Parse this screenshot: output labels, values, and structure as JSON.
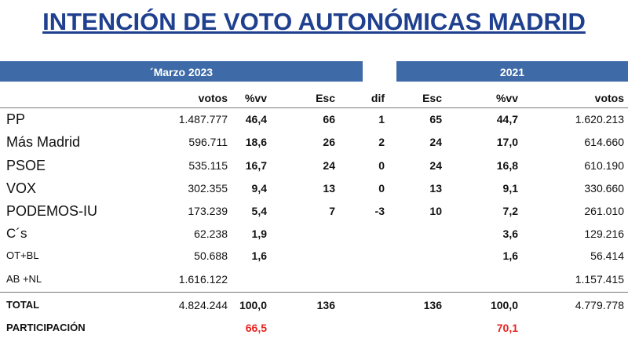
{
  "title": "INTENCIÓN DE VOTO AUTONÓMICAS MADRID",
  "header_groups": [
    "´Marzo 2023",
    "2021"
  ],
  "columns": [
    "votos",
    "%vv",
    "Esc",
    "dif",
    "Esc",
    "%vv",
    "votos"
  ],
  "rows": [
    [
      "PP",
      "1.487.777",
      "46,4",
      "66",
      "1",
      "65",
      "44,7",
      "1.620.213"
    ],
    [
      "Más Madrid",
      "596.711",
      "18,6",
      "26",
      "2",
      "24",
      "17,0",
      "614.660"
    ],
    [
      "PSOE",
      "535.115",
      "16,7",
      "24",
      "0",
      "24",
      "16,8",
      "610.190"
    ],
    [
      "VOX",
      "302.355",
      "9,4",
      "13",
      "0",
      "13",
      "9,1",
      "330.660"
    ],
    [
      "PODEMOS-IU",
      "173.239",
      "5,4",
      "7",
      "-3",
      "10",
      "7,2",
      "261.010"
    ],
    [
      "C´s",
      "62.238",
      "1,9",
      null,
      null,
      null,
      "3,6",
      "129.216"
    ],
    [
      "OT+BL",
      "50.688",
      "1,6",
      null,
      null,
      null,
      "1,6",
      "56.414"
    ],
    [
      "AB +NL",
      "1.616.122",
      null,
      null,
      null,
      null,
      null,
      "1.157.415"
    ],
    [
      "TOTAL",
      "4.824.244",
      "100,0",
      "136",
      null,
      "136",
      "100,0",
      "4.779.778"
    ],
    [
      "PARTICIPACIÓN",
      null,
      "66,5",
      null,
      null,
      null,
      "70,1",
      null
    ]
  ]
}
